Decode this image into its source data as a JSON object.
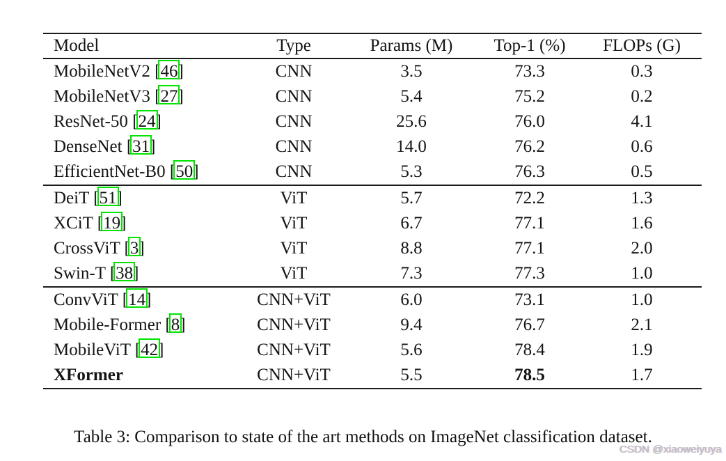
{
  "table": {
    "columns": [
      "Model",
      "Type",
      "Params (M)",
      "Top-1 (%)",
      "FLOPs (G)"
    ],
    "sections": [
      {
        "name": "cnn",
        "rows": [
          {
            "model": "MobileNetV2",
            "cite": "46",
            "type": "CNN",
            "params": "3.5",
            "top1": "73.3",
            "flops": "0.3"
          },
          {
            "model": "MobileNetV3",
            "cite": "27",
            "type": "CNN",
            "params": "5.4",
            "top1": "75.2",
            "flops": "0.2"
          },
          {
            "model": "ResNet-50",
            "cite": "24",
            "type": "CNN",
            "params": "25.6",
            "top1": "76.0",
            "flops": "4.1"
          },
          {
            "model": "DenseNet",
            "cite": "31",
            "type": "CNN",
            "params": "14.0",
            "top1": "76.2",
            "flops": "0.6"
          },
          {
            "model": "EfficientNet-B0",
            "cite": "50",
            "type": "CNN",
            "params": "5.3",
            "top1": "76.3",
            "flops": "0.5"
          }
        ]
      },
      {
        "name": "vit",
        "rows": [
          {
            "model": "DeiT",
            "cite": "51",
            "type": "ViT",
            "params": "5.7",
            "top1": "72.2",
            "flops": "1.3"
          },
          {
            "model": "XCiT",
            "cite": "19",
            "type": "ViT",
            "params": "6.7",
            "top1": "77.1",
            "flops": "1.6"
          },
          {
            "model": "CrossViT",
            "cite": "3",
            "type": "ViT",
            "params": "8.8",
            "top1": "77.1",
            "flops": "2.0"
          },
          {
            "model": "Swin-T",
            "cite": "38",
            "type": "ViT",
            "params": "7.3",
            "top1": "77.3",
            "flops": "1.0"
          }
        ]
      },
      {
        "name": "cnn-vit-hybrid",
        "rows": [
          {
            "model": "ConvViT",
            "cite": "14",
            "type": "CNN+ViT",
            "params": "6.0",
            "top1": "73.1",
            "flops": "1.0"
          },
          {
            "model": "Mobile-Former",
            "cite": "8",
            "type": "CNN+ViT",
            "params": "9.4",
            "top1": "76.7",
            "flops": "2.1"
          },
          {
            "model": "MobileViT",
            "cite": "42",
            "type": "CNN+ViT",
            "params": "5.6",
            "top1": "78.4",
            "flops": "1.9"
          },
          {
            "model": "XFormer",
            "cite": null,
            "type": "CNN+ViT",
            "params": "5.5",
            "top1": "78.5",
            "flops": "1.7",
            "bold_model": true,
            "bold_top1": true
          }
        ]
      }
    ]
  },
  "caption": {
    "text": "Table 3: Comparison to state of the art methods on ImageNet classification dataset."
  },
  "watermark": {
    "text": "CSDN @xiaoweiyuya"
  },
  "colors": {
    "citation_box": "#00e400",
    "rule": "#1b1b1b",
    "watermark": "#bdc1c7"
  }
}
